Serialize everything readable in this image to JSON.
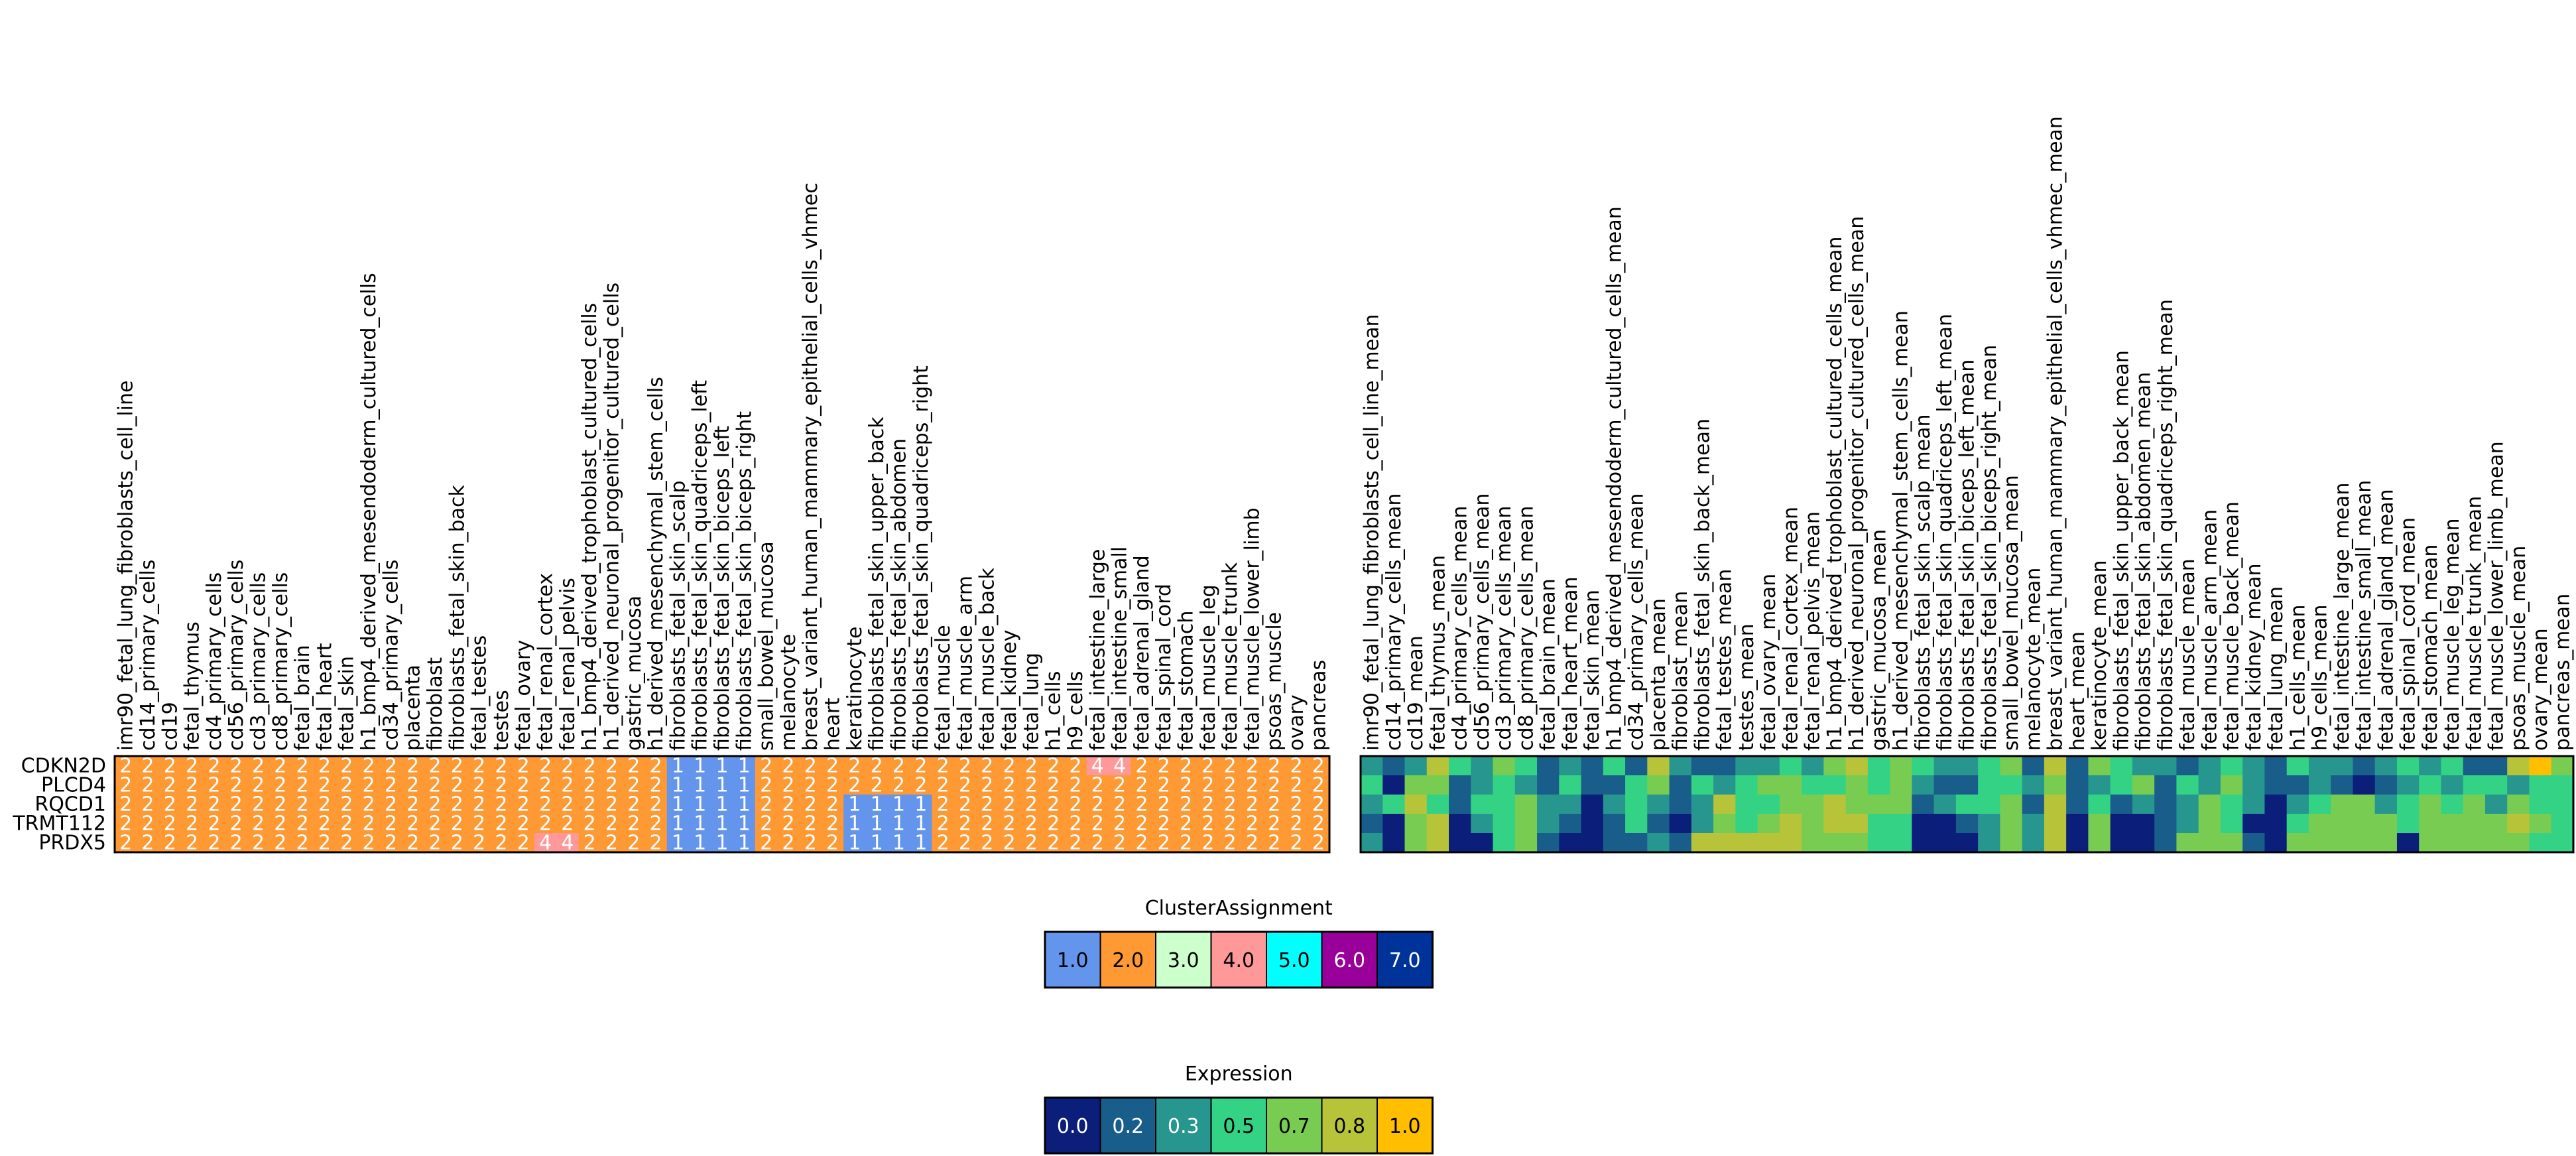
{
  "chart_data": [
    {
      "type": "heatmap",
      "title": "",
      "row_labels": [
        "CDKN2D",
        "PLCD4",
        "RQCD1",
        "TRMT112",
        "PRDX5"
      ],
      "column_labels": [
        "imr90_fetal_lung_fibroblasts_cell_line",
        "cd14_primary_cells",
        "cd19",
        "fetal_thymus",
        "cd4_primary_cells",
        "cd56_primary_cells",
        "cd3_primary_cells",
        "cd8_primary_cells",
        "fetal_brain",
        "fetal_heart",
        "fetal_skin",
        "h1_bmp4_derived_mesendoderm_cultured_cells",
        "cd34_primary_cells",
        "placenta",
        "fibroblast",
        "fibroblasts_fetal_skin_back",
        "fetal_testes",
        "testes",
        "fetal_ovary",
        "fetal_renal_cortex",
        "fetal_renal_pelvis",
        "h1_bmp4_derived_trophoblast_cultured_cells",
        "h1_derived_neuronal_progenitor_cultured_cells",
        "gastric_mucosa",
        "h1_derived_mesenchymal_stem_cells",
        "fibroblasts_fetal_skin_scalp",
        "fibroblasts_fetal_skin_quadriceps_left",
        "fibroblasts_fetal_skin_biceps_left",
        "fibroblasts_fetal_skin_biceps_right",
        "small_bowel_mucosa",
        "melanocyte",
        "breast_variant_human_mammary_epithelial_cells_vhmec",
        "heart",
        "keratinocyte",
        "fibroblasts_fetal_skin_upper_back",
        "fibroblasts_fetal_skin_abdomen",
        "fibroblasts_fetal_skin_quadriceps_right",
        "fetal_muscle",
        "fetal_muscle_arm",
        "fetal_muscle_back",
        "fetal_kidney",
        "fetal_lung",
        "h1_cells",
        "h9_cells",
        "fetal_intestine_large",
        "fetal_intestine_small",
        "fetal_adrenal_gland",
        "fetal_spinal_cord",
        "fetal_stomach",
        "fetal_muscle_leg",
        "fetal_muscle_trunk",
        "fetal_muscle_lower_limb",
        "psoas_muscle",
        "ovary",
        "pancreas"
      ],
      "values": [
        [
          2,
          2,
          2,
          2,
          2,
          2,
          2,
          2,
          2,
          2,
          2,
          2,
          2,
          2,
          2,
          2,
          2,
          2,
          2,
          2,
          2,
          2,
          2,
          2,
          2,
          1,
          1,
          1,
          1,
          2,
          2,
          2,
          2,
          2,
          2,
          2,
          2,
          2,
          2,
          2,
          2,
          2,
          2,
          2,
          4,
          4,
          2,
          2,
          2,
          2,
          2,
          2,
          2,
          2,
          2
        ],
        [
          2,
          2,
          2,
          2,
          2,
          2,
          2,
          2,
          2,
          2,
          2,
          2,
          2,
          2,
          2,
          2,
          2,
          2,
          2,
          2,
          2,
          2,
          2,
          2,
          2,
          1,
          1,
          1,
          1,
          2,
          2,
          2,
          2,
          2,
          2,
          2,
          2,
          2,
          2,
          2,
          2,
          2,
          2,
          2,
          2,
          2,
          2,
          2,
          2,
          2,
          2,
          2,
          2,
          2,
          2
        ],
        [
          2,
          2,
          2,
          2,
          2,
          2,
          2,
          2,
          2,
          2,
          2,
          2,
          2,
          2,
          2,
          2,
          2,
          2,
          2,
          2,
          2,
          2,
          2,
          2,
          2,
          1,
          1,
          1,
          1,
          2,
          2,
          2,
          2,
          1,
          1,
          1,
          1,
          2,
          2,
          2,
          2,
          2,
          2,
          2,
          2,
          2,
          2,
          2,
          2,
          2,
          2,
          2,
          2,
          2,
          2
        ],
        [
          2,
          2,
          2,
          2,
          2,
          2,
          2,
          2,
          2,
          2,
          2,
          2,
          2,
          2,
          2,
          2,
          2,
          2,
          2,
          2,
          2,
          2,
          2,
          2,
          2,
          1,
          1,
          1,
          1,
          2,
          2,
          2,
          2,
          1,
          1,
          1,
          1,
          2,
          2,
          2,
          2,
          2,
          2,
          2,
          2,
          2,
          2,
          2,
          2,
          2,
          2,
          2,
          2,
          2,
          2
        ],
        [
          2,
          2,
          2,
          2,
          2,
          2,
          2,
          2,
          2,
          2,
          2,
          2,
          2,
          2,
          2,
          2,
          2,
          2,
          2,
          4,
          4,
          2,
          2,
          2,
          2,
          1,
          1,
          1,
          1,
          2,
          2,
          2,
          2,
          1,
          1,
          1,
          1,
          2,
          2,
          2,
          2,
          2,
          2,
          2,
          2,
          2,
          2,
          2,
          2,
          2,
          2,
          2,
          2,
          2,
          2
        ]
      ],
      "cell_labels": [
        "1",
        "2",
        "3",
        "4",
        "5",
        "6",
        "7"
      ],
      "colorbar": {
        "title": "ClusterAssignment",
        "ticks": [
          "1.0",
          "2.0",
          "3.0",
          "4.0",
          "5.0",
          "6.0",
          "7.0"
        ],
        "colors": [
          "#6495ED",
          "#FF9933",
          "#CCFFCC",
          "#FF9999",
          "#00FFFF",
          "#990099",
          "#003399"
        ]
      }
    },
    {
      "type": "heatmap",
      "title": "",
      "row_labels": [
        "CDKN2D",
        "PLCD4",
        "RQCD1",
        "TRMT112",
        "PRDX5"
      ],
      "column_labels": [
        "imr90_fetal_lung_fibroblasts_cell_line_mean",
        "cd14_primary_cells_mean",
        "cd19_mean",
        "fetal_thymus_mean",
        "cd4_primary_cells_mean",
        "cd56_primary_cells_mean",
        "cd3_primary_cells_mean",
        "cd8_primary_cells_mean",
        "fetal_brain_mean",
        "fetal_heart_mean",
        "fetal_skin_mean",
        "h1_bmp4_derived_mesendoderm_cultured_cells_mean",
        "cd34_primary_cells_mean",
        "placenta_mean",
        "fibroblast_mean",
        "fibroblasts_fetal_skin_back_mean",
        "fetal_testes_mean",
        "testes_mean",
        "fetal_ovary_mean",
        "fetal_renal_cortex_mean",
        "fetal_renal_pelvis_mean",
        "h1_bmp4_derived_trophoblast_cultured_cells_mean",
        "h1_derived_neuronal_progenitor_cultured_cells_mean",
        "gastric_mucosa_mean",
        "h1_derived_mesenchymal_stem_cells_mean",
        "fibroblasts_fetal_skin_scalp_mean",
        "fibroblasts_fetal_skin_quadriceps_left_mean",
        "fibroblasts_fetal_skin_biceps_left_mean",
        "fibroblasts_fetal_skin_biceps_right_mean",
        "small_bowel_mucosa_mean",
        "melanocyte_mean",
        "breast_variant_human_mammary_epithelial_cells_vhmec_mean",
        "heart_mean",
        "keratinocyte_mean",
        "fibroblasts_fetal_skin_upper_back_mean",
        "fibroblasts_fetal_skin_abdomen_mean",
        "fibroblasts_fetal_skin_quadriceps_right_mean",
        "fetal_muscle_mean",
        "fetal_muscle_arm_mean",
        "fetal_muscle_back_mean",
        "fetal_kidney_mean",
        "fetal_lung_mean",
        "h1_cells_mean",
        "h9_cells_mean",
        "fetal_intestine_large_mean",
        "fetal_intestine_small_mean",
        "fetal_adrenal_gland_mean",
        "fetal_spinal_cord_mean",
        "fetal_stomach_mean",
        "fetal_muscle_leg_mean",
        "fetal_muscle_trunk_mean",
        "fetal_muscle_lower_limb_mean",
        "psoas_muscle_mean",
        "ovary_mean",
        "pancreas_mean"
      ],
      "values": [
        [
          0.3,
          0.2,
          0.3,
          0.8,
          0.5,
          0.3,
          0.7,
          0.5,
          0.2,
          0.3,
          0.2,
          0.5,
          0.2,
          0.8,
          0.3,
          0.2,
          0.2,
          0.3,
          0.3,
          0.5,
          0.3,
          0.7,
          0.8,
          0.5,
          0.7,
          0.5,
          0.3,
          0.3,
          0.5,
          0.7,
          0.2,
          0.8,
          0.2,
          0.7,
          0.5,
          0.3,
          0.3,
          0.2,
          0.3,
          0.5,
          0.3,
          0.2,
          0.5,
          0.3,
          0.3,
          0.2,
          0.3,
          0.5,
          0.3,
          0.5,
          0.2,
          0.2,
          0.8,
          1.0,
          0.7
        ],
        [
          0.5,
          0.0,
          0.7,
          0.7,
          0.2,
          0.3,
          0.5,
          0.3,
          0.2,
          0.5,
          0.2,
          0.2,
          0.5,
          0.7,
          0.2,
          0.5,
          0.3,
          0.5,
          0.7,
          0.7,
          0.5,
          0.5,
          0.7,
          0.5,
          0.7,
          0.3,
          0.2,
          0.2,
          0.5,
          0.5,
          0.3,
          0.7,
          0.2,
          0.3,
          0.5,
          0.7,
          0.2,
          0.5,
          0.3,
          0.7,
          0.3,
          0.2,
          0.2,
          0.3,
          0.2,
          0.0,
          0.2,
          0.3,
          0.5,
          0.3,
          0.5,
          0.5,
          0.3,
          0.5,
          0.5
        ],
        [
          0.3,
          0.5,
          0.8,
          0.5,
          0.2,
          0.5,
          0.5,
          0.7,
          0.3,
          0.3,
          0.0,
          0.3,
          0.5,
          0.3,
          0.2,
          0.3,
          0.8,
          0.5,
          0.5,
          0.7,
          0.7,
          0.8,
          0.7,
          0.7,
          0.7,
          0.2,
          0.3,
          0.5,
          0.5,
          0.7,
          0.2,
          0.8,
          0.2,
          0.5,
          0.2,
          0.3,
          0.2,
          0.3,
          0.7,
          0.5,
          0.3,
          0.0,
          0.3,
          0.5,
          0.7,
          0.7,
          0.3,
          0.5,
          0.7,
          0.5,
          0.7,
          0.3,
          0.7,
          0.5,
          0.5
        ],
        [
          0.2,
          0.0,
          0.7,
          0.8,
          0.0,
          0.3,
          0.5,
          0.7,
          0.3,
          0.2,
          0.0,
          0.2,
          0.5,
          0.2,
          0.0,
          0.3,
          0.7,
          0.5,
          0.7,
          0.8,
          0.7,
          0.8,
          0.8,
          0.5,
          0.5,
          0.0,
          0.0,
          0.2,
          0.3,
          0.7,
          0.3,
          0.8,
          0.0,
          0.7,
          0.0,
          0.0,
          0.2,
          0.3,
          0.7,
          0.5,
          0.0,
          0.0,
          0.5,
          0.7,
          0.7,
          0.7,
          0.7,
          0.5,
          0.7,
          0.7,
          0.7,
          0.7,
          0.8,
          0.7,
          0.5
        ],
        [
          0.3,
          0.0,
          0.7,
          0.8,
          0.0,
          0.0,
          0.5,
          0.7,
          0.2,
          0.0,
          0.0,
          0.2,
          0.2,
          0.3,
          0.2,
          0.8,
          0.8,
          0.8,
          0.8,
          0.8,
          0.7,
          0.7,
          0.7,
          0.5,
          0.5,
          0.0,
          0.0,
          0.0,
          0.3,
          0.7,
          0.3,
          0.8,
          0.0,
          0.7,
          0.0,
          0.0,
          0.2,
          0.7,
          0.7,
          0.7,
          0.2,
          0.0,
          0.7,
          0.7,
          0.7,
          0.7,
          0.7,
          0.0,
          0.7,
          0.7,
          0.7,
          0.7,
          0.7,
          0.5,
          0.5
        ]
      ],
      "colorbar": {
        "title": "Expression",
        "ticks": [
          "0.0",
          "0.2",
          "0.3",
          "0.5",
          "0.7",
          "0.8",
          "1.0"
        ],
        "colors": [
          "#0b1e7a",
          "#195e8a",
          "#26968e",
          "#34d285",
          "#78cc52",
          "#b7c43a",
          "#ffbf00"
        ]
      }
    }
  ]
}
